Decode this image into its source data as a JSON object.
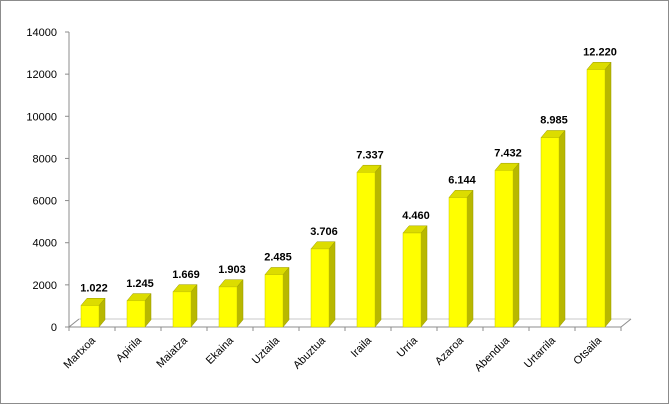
{
  "chart_data": {
    "type": "bar",
    "title": "",
    "xlabel": "",
    "ylabel": "",
    "ylim": [
      0,
      14000
    ],
    "yticks": [
      0,
      2000,
      4000,
      6000,
      8000,
      10000,
      12000,
      14000
    ],
    "grid": false,
    "legend": "none",
    "bar_color": "#ffff00",
    "categories": [
      "Martxoa",
      "Apirila",
      "Maiatza",
      "Ekaina",
      "Uztaila",
      "Abuztua",
      "Iraila",
      "Urria",
      "Azaroa",
      "Abendua",
      "Urtarrila",
      "Otsaila"
    ],
    "values": [
      1022,
      1245,
      1669,
      1903,
      2485,
      3706,
      7337,
      4460,
      6144,
      7432,
      8985,
      12220
    ],
    "data_labels": [
      "1.022",
      "1.245",
      "1.669",
      "1.903",
      "2.485",
      "3.706",
      "7.337",
      "4.460",
      "6.144",
      "7.432",
      "8.985",
      "12.220"
    ]
  }
}
